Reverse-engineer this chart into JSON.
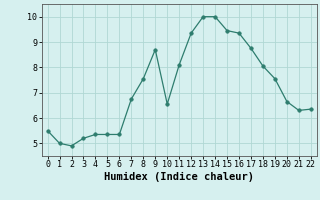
{
  "x": [
    0,
    1,
    2,
    3,
    4,
    5,
    6,
    7,
    8,
    9,
    10,
    11,
    12,
    13,
    14,
    15,
    16,
    17,
    18,
    19,
    20,
    21,
    22
  ],
  "y": [
    5.5,
    5.0,
    4.9,
    5.2,
    5.35,
    5.35,
    5.35,
    6.75,
    7.55,
    8.7,
    6.55,
    8.1,
    9.35,
    10.0,
    10.0,
    9.45,
    9.35,
    8.75,
    8.05,
    7.55,
    6.65,
    6.3,
    6.35
  ],
  "line_color": "#2e7d6e",
  "marker": "o",
  "marker_size": 2.5,
  "bg_color": "#d6f0ef",
  "grid_color": "#b0d8d4",
  "xlabel": "Humidex (Indice chaleur)",
  "xlim": [
    -0.5,
    22.5
  ],
  "ylim": [
    4.5,
    10.5
  ],
  "yticks": [
    5,
    6,
    7,
    8,
    9,
    10
  ],
  "xticks": [
    0,
    1,
    2,
    3,
    4,
    5,
    6,
    7,
    8,
    9,
    10,
    11,
    12,
    13,
    14,
    15,
    16,
    17,
    18,
    19,
    20,
    21,
    22
  ],
  "tick_label_size": 6.0,
  "xlabel_size": 7.5,
  "linewidth": 0.9
}
